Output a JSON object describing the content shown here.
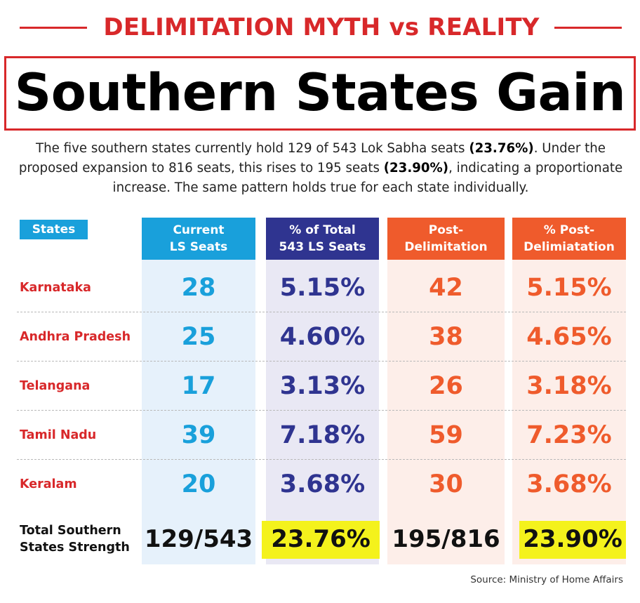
{
  "kicker": "DELIMITATION MYTH vs REALITY",
  "headline": "Southern States Gain",
  "intro": {
    "p1": "The five southern states currently hold 129 of 543 Lok Sabha seats ",
    "b1": "(23.76%)",
    "p2": ". Under the proposed expansion to 816 seats, this rises to 195 seats ",
    "b2": "(23.90%)",
    "p3": ", indicating a proportionate increase. The same pattern holds true for each state individually."
  },
  "colors": {
    "accent_red": "#d8282a",
    "blue": "#19a0db",
    "navy": "#2f3490",
    "orange": "#ef5b2c",
    "highlight": "#f4f21c"
  },
  "chart_data": {
    "type": "table",
    "title": "Southern States Gain",
    "columns": [
      "States",
      "Current\nLS Seats",
      "% of Total\n543 LS Seats",
      "Post-\nDelimitation",
      "% Post-\nDelimiatation"
    ],
    "rows": [
      {
        "state": "Karnataka",
        "current": "28",
        "pct_current": "5.15%",
        "post": "42",
        "pct_post": "5.15%"
      },
      {
        "state": "Andhra Pradesh",
        "current": "25",
        "pct_current": "4.60%",
        "post": "38",
        "pct_post": "4.65%"
      },
      {
        "state": "Telangana",
        "current": "17",
        "pct_current": "3.13%",
        "post": "26",
        "pct_post": "3.18%"
      },
      {
        "state": "Tamil Nadu",
        "current": "39",
        "pct_current": "7.18%",
        "post": "59",
        "pct_post": "7.23%"
      },
      {
        "state": "Keralam",
        "current": "20",
        "pct_current": "3.68%",
        "post": "30",
        "pct_post": "3.68%"
      }
    ],
    "total": {
      "label": "Total Southern\nStates Strength",
      "current": "129/543",
      "pct_current": "23.76%",
      "post": "195/816",
      "pct_post": "23.90%"
    }
  },
  "source": "Source: Ministry of Home Affairs"
}
